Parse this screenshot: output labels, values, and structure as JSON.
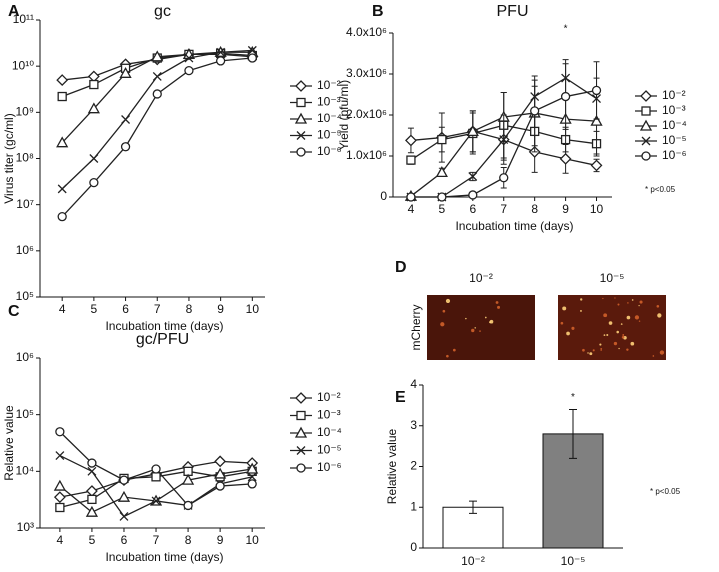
{
  "chart_data": [
    {
      "type": "line",
      "panel": "A",
      "title": "gc",
      "xlabel": "Incubation time (days)",
      "ylabel": "Virus titer (gc/ml)",
      "log_y": true,
      "x": [
        4,
        5,
        6,
        7,
        8,
        9,
        10
      ],
      "xlim": [
        3.3,
        10.4
      ],
      "xticks": [
        4,
        5,
        6,
        7,
        8,
        9,
        10
      ],
      "ylim": [
        100000,
        100000000000
      ],
      "yticks": [
        {
          "value": 100000,
          "label": "10⁵"
        },
        {
          "value": 1000000,
          "label": "10⁶"
        },
        {
          "value": 10000000,
          "label": "10⁷"
        },
        {
          "value": 100000000,
          "label": "10⁸"
        },
        {
          "value": 1000000000,
          "label": "10⁹"
        },
        {
          "value": 10000000000,
          "label": "10¹⁰"
        },
        {
          "value": 100000000000,
          "label": "10¹¹"
        }
      ],
      "series": [
        {
          "name": "10⁻²",
          "marker": "diamond",
          "color": "#222222",
          "values": [
            5000000000,
            6000000000,
            11000000000,
            14000000000,
            18000000000,
            18000000000,
            16000000000
          ]
        },
        {
          "name": "10⁻³",
          "marker": "square",
          "color": "#222222",
          "values": [
            2200000000,
            4000000000,
            9000000000,
            15000000000,
            18000000000,
            19000000000,
            17000000000
          ]
        },
        {
          "name": "10⁻⁴",
          "marker": "triangle",
          "color": "#222222",
          "values": [
            220000000,
            1200000000,
            7000000000,
            16000000000,
            18000000000,
            20000000000,
            20000000000
          ]
        },
        {
          "name": "10⁻⁵",
          "marker": "x",
          "color": "#222222",
          "values": [
            22000000,
            100000000,
            700000000,
            6000000000,
            15000000000,
            20000000000,
            22000000000
          ]
        },
        {
          "name": "10⁻⁶",
          "marker": "circle",
          "color": "#222222",
          "values": [
            5500000,
            30000000,
            180000000,
            2500000000,
            8000000000,
            13000000000,
            15000000000
          ]
        }
      ]
    },
    {
      "type": "line",
      "panel": "B",
      "title": "PFU",
      "xlabel": "Incubation time (days)",
      "ylabel": "Yield (pfu/ml)",
      "log_y": false,
      "x": [
        4,
        5,
        6,
        7,
        8,
        9,
        10
      ],
      "xlim": [
        3.42,
        10.5
      ],
      "xticks": [
        4,
        5,
        6,
        7,
        8,
        9,
        10
      ],
      "ylim": [
        0,
        4000000
      ],
      "yticks": [
        0,
        {
          "value": 1000000,
          "label": "1.0x10⁶"
        },
        {
          "value": 2000000,
          "label": "2.0x10⁶"
        },
        {
          "value": 3000000,
          "label": "3.0x10⁶"
        },
        {
          "value": 4000000,
          "label": "4.0x10⁶"
        }
      ],
      "annotations": [
        {
          "text": "*",
          "x": 9
        }
      ],
      "note": "* p<0.05",
      "series": [
        {
          "name": "10⁻²",
          "marker": "diamond",
          "color": "#222222",
          "values": [
            1380000,
            1450000,
            1600000,
            1400000,
            1100000,
            930000,
            770000
          ],
          "errors": [
            300000,
            600000,
            500000,
            500000,
            500000,
            350000,
            150000
          ]
        },
        {
          "name": "10⁻³",
          "marker": "square",
          "color": "#222222",
          "values": [
            900000,
            1400000,
            1550000,
            1750000,
            1600000,
            1400000,
            1300000
          ],
          "errors": [
            100000,
            300000,
            500000,
            800000,
            500000,
            300000,
            300000
          ]
        },
        {
          "name": "10⁻⁴",
          "marker": "triangle",
          "color": "#222222",
          "values": [
            20000,
            600000,
            1600000,
            1950000,
            2050000,
            1900000,
            1850000
          ],
          "errors": [
            20000,
            100000,
            500000,
            600000,
            800000,
            600000,
            800000
          ]
        },
        {
          "name": "10⁻⁵",
          "marker": "x",
          "color": "#222222",
          "values": [
            0,
            0,
            500000,
            1400000,
            2450000,
            2900000,
            2400000
          ],
          "errors": [
            0,
            0,
            100000,
            600000,
            500000,
            450000,
            500000
          ]
        },
        {
          "name": "10⁻⁶",
          "marker": "circle",
          "color": "#222222",
          "values": [
            0,
            0,
            50000,
            470000,
            2100000,
            2450000,
            2600000
          ],
          "errors": [
            0,
            0,
            20000,
            250000,
            600000,
            800000,
            700000
          ]
        }
      ]
    },
    {
      "type": "line",
      "panel": "C",
      "title": "gc/PFU",
      "xlabel": "Incubation time (days)",
      "ylabel": "Relative value",
      "log_y": true,
      "x": [
        4,
        5,
        6,
        7,
        8,
        9,
        10
      ],
      "xlim": [
        3.38,
        10.4
      ],
      "xticks": [
        4,
        5,
        6,
        7,
        8,
        9,
        10
      ],
      "ylim": [
        1000,
        1000000
      ],
      "yticks": [
        {
          "value": 1000,
          "label": "10³"
        },
        {
          "value": 10000,
          "label": "10⁴"
        },
        {
          "value": 100000,
          "label": "10⁵"
        },
        {
          "value": 1000000,
          "label": "10⁶"
        }
      ],
      "series": [
        {
          "name": "10⁻²",
          "marker": "diamond",
          "color": "#222222",
          "values": [
            3500,
            4500,
            7000,
            9000,
            12000,
            15000,
            14000
          ]
        },
        {
          "name": "10⁻³",
          "marker": "square",
          "color": "#222222",
          "values": [
            2300,
            3200,
            7500,
            8000,
            10000,
            8000,
            10000
          ]
        },
        {
          "name": "10⁻⁴",
          "marker": "triangle",
          "color": "#222222",
          "values": [
            5500,
            1900,
            3500,
            3000,
            7000,
            9000,
            11000
          ]
        },
        {
          "name": "10⁻⁵",
          "marker": "x",
          "color": "#222222",
          "values": [
            19000,
            10000,
            1600,
            3000,
            2500,
            6000,
            8000
          ]
        },
        {
          "name": "10⁻⁶",
          "marker": "circle",
          "color": "#222222",
          "values": [
            50000,
            14000,
            7000,
            11000,
            2500,
            5500,
            6000
          ]
        }
      ]
    },
    {
      "type": "image",
      "panel": "D",
      "ylabel": "mCherry",
      "categories": [
        "10⁻²",
        "10⁻⁵"
      ]
    },
    {
      "type": "bar",
      "panel": "E",
      "ylabel": "Relative value",
      "categories": [
        "10⁻²",
        "10⁻⁵"
      ],
      "values": [
        1.0,
        2.8
      ],
      "errors": [
        0.15,
        0.6
      ],
      "colors": [
        "#ffffff",
        "#808080"
      ],
      "ylim": [
        0,
        4
      ],
      "yticks": [
        0,
        1,
        2,
        3,
        4
      ],
      "annotations": [
        {
          "text": "*",
          "x": "10⁻⁵"
        }
      ],
      "note": "* p<0.05"
    }
  ]
}
